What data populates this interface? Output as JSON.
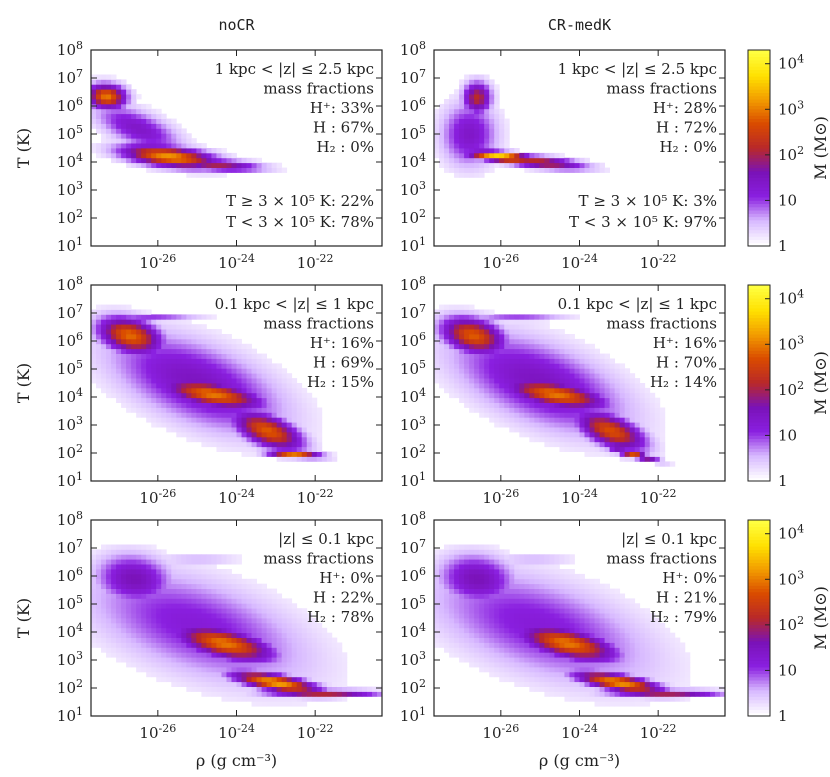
{
  "colormap": {
    "stops": [
      "#ffffff",
      "#d7b8ff",
      "#8a1fe0",
      "#7a12b8",
      "#b8282a",
      "#d94a00",
      "#f29b00",
      "#ffe000",
      "#ffff40"
    ]
  },
  "chart_data": [
    {
      "type": "heatmap",
      "panel": "noCR, 1 kpc < |z| <= 2.5 kpc",
      "column_title": "noCR",
      "xlabel": "",
      "ylabel": "T (K)",
      "xscale": "log",
      "yscale": "log",
      "xlim": [
        2e-28,
        5e-21
      ],
      "ylim": [
        10,
        100000000.0
      ],
      "x_ticks": [
        "10^-26",
        "10^-24",
        "10^-22"
      ],
      "y_ticks": [
        "10^1",
        "10^2",
        "10^3",
        "10^4",
        "10^5",
        "10^6",
        "10^7",
        "10^8"
      ],
      "annotations": [
        "1 kpc < |z| ≤ 2.5 kpc",
        "mass fractions",
        "H⁺: 33%",
        "H  : 67%",
        "H₂ :  0%",
        "T ≥ 3 × 10⁵ K: 22%",
        "T < 3 × 10⁵ K: 78%"
      ],
      "blobs": [
        {
          "logrho": -27.3,
          "logT": 6.35,
          "sx": 0.35,
          "sy": 0.3,
          "rot": -20,
          "amp": 3.0
        },
        {
          "logrho": -25.7,
          "logT": 4.2,
          "sx": 0.85,
          "sy": 0.25,
          "rot": -10,
          "amp": 3.2
        },
        {
          "logrho": -26.5,
          "logT": 5.2,
          "sx": 0.9,
          "sy": 0.4,
          "rot": -35,
          "amp": 1.4
        },
        {
          "logrho": -24.5,
          "logT": 3.9,
          "sx": 0.8,
          "sy": 0.15,
          "rot": -5,
          "amp": 2.0
        }
      ]
    },
    {
      "type": "heatmap",
      "panel": "CR-medK, 1 kpc < |z| <= 2.5 kpc",
      "column_title": "CR-medK",
      "xscale": "log",
      "yscale": "log",
      "xlim": [
        2e-28,
        5e-21
      ],
      "ylim": [
        10,
        100000000.0
      ],
      "x_ticks": [
        "10^-26",
        "10^-24",
        "10^-22"
      ],
      "y_ticks": [
        "10^1",
        "10^2",
        "10^3",
        "10^4",
        "10^5",
        "10^6",
        "10^7",
        "10^8"
      ],
      "annotations": [
        "1 kpc < |z| ≤ 2.5 kpc",
        "mass fractions",
        "H⁺: 28%",
        "H  : 72%",
        "H₂ :  0%",
        "T ≥ 3 × 10⁵ K:  3%",
        "T < 3 × 10⁵ K: 97%"
      ],
      "colorbar": {
        "label": "M (M⊙)",
        "ticks": [
          "1",
          "10",
          "10^2",
          "10^3",
          "10^4"
        ],
        "scale": "log",
        "range": [
          1,
          20000.0
        ]
      },
      "blobs": [
        {
          "logrho": -26.6,
          "logT": 6.3,
          "sx": 0.25,
          "sy": 0.4,
          "rot": 0,
          "amp": 2.2
        },
        {
          "logrho": -26.0,
          "logT": 4.2,
          "sx": 0.6,
          "sy": 0.12,
          "rot": -8,
          "amp": 3.8
        },
        {
          "logrho": -25.0,
          "logT": 4.0,
          "sx": 0.8,
          "sy": 0.15,
          "rot": -8,
          "amp": 2.3
        },
        {
          "logrho": -26.8,
          "logT": 5.0,
          "sx": 0.5,
          "sy": 0.8,
          "rot": 0,
          "amp": 1.4
        }
      ]
    },
    {
      "type": "heatmap",
      "panel": "noCR, 0.1 kpc < |z| <= 1 kpc",
      "ylabel": "T (K)",
      "xscale": "log",
      "yscale": "log",
      "xlim": [
        2e-28,
        5e-21
      ],
      "ylim": [
        10,
        100000000.0
      ],
      "x_ticks": [
        "10^-26",
        "10^-24",
        "10^-22"
      ],
      "y_ticks": [
        "10^1",
        "10^2",
        "10^3",
        "10^4",
        "10^5",
        "10^6",
        "10^7",
        "10^8"
      ],
      "annotations": [
        "0.1 kpc < |z| ≤ 1 kpc",
        "mass fractions",
        "H⁺: 16%",
        "H  : 69%",
        "H₂ : 15%"
      ],
      "blobs": [
        {
          "logrho": -26.7,
          "logT": 6.2,
          "sx": 0.6,
          "sy": 0.4,
          "rot": -30,
          "amp": 2.9
        },
        {
          "logrho": -24.6,
          "logT": 4.1,
          "sx": 0.9,
          "sy": 0.3,
          "rot": -15,
          "amp": 3.0
        },
        {
          "logrho": -23.2,
          "logT": 2.8,
          "sx": 0.7,
          "sy": 0.35,
          "rot": -35,
          "amp": 2.8
        },
        {
          "logrho": -22.5,
          "logT": 1.95,
          "sx": 0.5,
          "sy": 0.08,
          "rot": -5,
          "amp": 3.0
        },
        {
          "logrho": -25.0,
          "logT": 4.5,
          "sx": 1.8,
          "sy": 0.9,
          "rot": -35,
          "amp": 1.5
        },
        {
          "logrho": -26.2,
          "logT": 6.8,
          "sx": 0.9,
          "sy": 0.06,
          "rot": 0,
          "amp": 1.7
        }
      ]
    },
    {
      "type": "heatmap",
      "panel": "CR-medK, 0.1 kpc < |z| <= 1 kpc",
      "xscale": "log",
      "yscale": "log",
      "xlim": [
        2e-28,
        5e-21
      ],
      "ylim": [
        10,
        100000000.0
      ],
      "x_ticks": [
        "10^-26",
        "10^-24",
        "10^-22"
      ],
      "y_ticks": [
        "10^1",
        "10^2",
        "10^3",
        "10^4",
        "10^5",
        "10^6",
        "10^7",
        "10^8"
      ],
      "annotations": [
        "0.1 kpc < |z| ≤ 1 kpc",
        "mass fractions",
        "H⁺: 16%",
        "H  : 70%",
        "H₂ : 14%"
      ],
      "colorbar": {
        "label": "M (M⊙)",
        "ticks": [
          "1",
          "10",
          "10^2",
          "10^3",
          "10^4"
        ],
        "scale": "log",
        "range": [
          1,
          20000.0
        ]
      },
      "blobs": [
        {
          "logrho": -26.7,
          "logT": 6.2,
          "sx": 0.6,
          "sy": 0.4,
          "rot": -30,
          "amp": 2.8
        },
        {
          "logrho": -24.6,
          "logT": 4.1,
          "sx": 0.9,
          "sy": 0.3,
          "rot": -15,
          "amp": 3.0
        },
        {
          "logrho": -23.2,
          "logT": 2.8,
          "sx": 0.7,
          "sy": 0.35,
          "rot": -35,
          "amp": 2.7
        },
        {
          "logrho": -22.6,
          "logT": 1.95,
          "sx": 0.45,
          "sy": 0.08,
          "rot": -20,
          "amp": 2.7
        },
        {
          "logrho": -25.0,
          "logT": 4.5,
          "sx": 1.8,
          "sy": 0.9,
          "rot": -35,
          "amp": 1.5
        },
        {
          "logrho": -25.6,
          "logT": 6.8,
          "sx": 0.9,
          "sy": 0.06,
          "rot": 0,
          "amp": 1.6
        }
      ]
    },
    {
      "type": "heatmap",
      "panel": "noCR, |z| <= 0.1 kpc",
      "xlabel": "ρ (g cm⁻³)",
      "ylabel": "T (K)",
      "xscale": "log",
      "yscale": "log",
      "xlim": [
        2e-28,
        5e-21
      ],
      "ylim": [
        10,
        100000000.0
      ],
      "x_ticks": [
        "10^-26",
        "10^-24",
        "10^-22"
      ],
      "y_ticks": [
        "10^1",
        "10^2",
        "10^3",
        "10^4",
        "10^5",
        "10^6",
        "10^7",
        "10^8"
      ],
      "annotations": [
        "|z| ≤ 0.1 kpc",
        "mass fractions",
        "H⁺:  0%",
        "H  : 22%",
        "H₂ : 78%"
      ],
      "blobs": [
        {
          "logrho": -26.6,
          "logT": 5.9,
          "sx": 0.7,
          "sy": 0.6,
          "rot": -30,
          "amp": 1.6
        },
        {
          "logrho": -24.3,
          "logT": 3.6,
          "sx": 0.9,
          "sy": 0.35,
          "rot": -20,
          "amp": 3.0
        },
        {
          "logrho": -23.0,
          "logT": 2.2,
          "sx": 0.8,
          "sy": 0.2,
          "rot": -15,
          "amp": 3.3
        },
        {
          "logrho": -21.8,
          "logT": 1.85,
          "sx": 1.0,
          "sy": 0.06,
          "rot": 0,
          "amp": 3.6
        },
        {
          "logrho": -25.0,
          "logT": 4.2,
          "sx": 2.2,
          "sy": 1.1,
          "rot": -30,
          "amp": 1.2
        },
        {
          "logrho": -25.0,
          "logT": 6.6,
          "sx": 0.8,
          "sy": 0.07,
          "rot": 0,
          "amp": 1.0
        }
      ]
    },
    {
      "type": "heatmap",
      "panel": "CR-medK, |z| <= 0.1 kpc",
      "xlabel": "ρ (g cm⁻³)",
      "xscale": "log",
      "yscale": "log",
      "xlim": [
        2e-28,
        5e-21
      ],
      "ylim": [
        10,
        100000000.0
      ],
      "x_ticks": [
        "10^-26",
        "10^-24",
        "10^-22"
      ],
      "y_ticks": [
        "10^1",
        "10^2",
        "10^3",
        "10^4",
        "10^5",
        "10^6",
        "10^7",
        "10^8"
      ],
      "annotations": [
        "|z| ≤ 0.1 kpc",
        "mass fractions",
        "H⁺:  0%",
        "H  : 21%",
        "H₂ : 79%"
      ],
      "colorbar": {
        "label": "M (M⊙)",
        "ticks": [
          "1",
          "10",
          "10^2",
          "10^3",
          "10^4"
        ],
        "scale": "log",
        "range": [
          1,
          20000.0
        ]
      },
      "blobs": [
        {
          "logrho": -26.6,
          "logT": 5.9,
          "sx": 0.7,
          "sy": 0.6,
          "rot": -30,
          "amp": 1.6
        },
        {
          "logrho": -24.3,
          "logT": 3.6,
          "sx": 0.9,
          "sy": 0.35,
          "rot": -20,
          "amp": 3.0
        },
        {
          "logrho": -23.0,
          "logT": 2.2,
          "sx": 0.8,
          "sy": 0.2,
          "rot": -15,
          "amp": 3.2
        },
        {
          "logrho": -21.8,
          "logT": 1.85,
          "sx": 1.0,
          "sy": 0.06,
          "rot": 0,
          "amp": 3.4
        },
        {
          "logrho": -25.0,
          "logT": 4.2,
          "sx": 2.2,
          "sy": 1.1,
          "rot": -30,
          "amp": 1.2
        },
        {
          "logrho": -25.2,
          "logT": 6.6,
          "sx": 0.8,
          "sy": 0.07,
          "rot": 0,
          "amp": 1.0
        }
      ]
    }
  ]
}
